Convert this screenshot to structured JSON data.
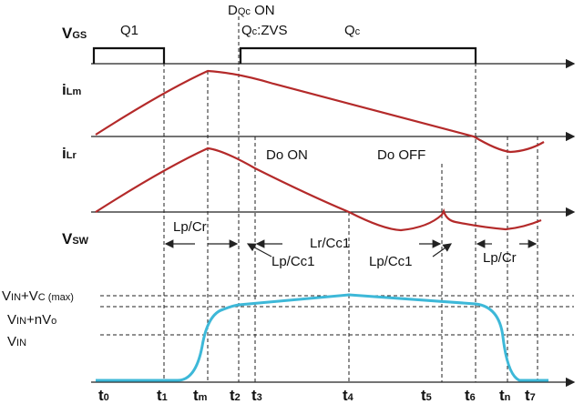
{
  "signals": {
    "vgs": {
      "main": "V",
      "sub": "GS"
    },
    "ilm": {
      "main": "i",
      "sub": "Lm"
    },
    "ilr": {
      "main": "i",
      "sub": "Lr"
    },
    "vsw": {
      "main": "V",
      "sub": "SW"
    }
  },
  "gate_labels": {
    "q1": "Q1",
    "dqc_on": {
      "main": "D",
      "sub": "Qc",
      "tail": " ON"
    },
    "qc_zvs": {
      "main": "Q",
      "sub": "c",
      "tail": ":ZVS"
    },
    "qc": {
      "main": "Q",
      "sub": "c"
    }
  },
  "annotations": {
    "do_on": "Do ON",
    "do_off": "Do OFF"
  },
  "intervals": {
    "lp_cr_1": "Lp/Cr",
    "lr_cc1": "Lr/Cc1",
    "lp_cc1_1": "Lp/Cc1",
    "lp_cc1_2": "Lp/Cc1",
    "lp_cr_2": "Lp/Cr"
  },
  "levels": {
    "vin_vc": {
      "main": "V",
      "sub": "IN",
      "mid": "+V",
      "sub2": "C (max)"
    },
    "vin_nvo": {
      "main": "V",
      "sub": "IN",
      "mid": "+nV",
      "sub2": "o"
    },
    "vin": {
      "main": "V",
      "sub": "IN"
    }
  },
  "times": [
    {
      "main": "t",
      "sub": "0"
    },
    {
      "main": "t",
      "sub": "1"
    },
    {
      "main": "t",
      "sub": "m"
    },
    {
      "main": "t",
      "sub": "2"
    },
    {
      "main": "t",
      "sub": "3"
    },
    {
      "main": "t",
      "sub": "4"
    },
    {
      "main": "t",
      "sub": "5"
    },
    {
      "main": "t",
      "sub": "6"
    },
    {
      "main": "t",
      "sub": "n"
    },
    {
      "main": "t",
      "sub": "7"
    }
  ]
}
